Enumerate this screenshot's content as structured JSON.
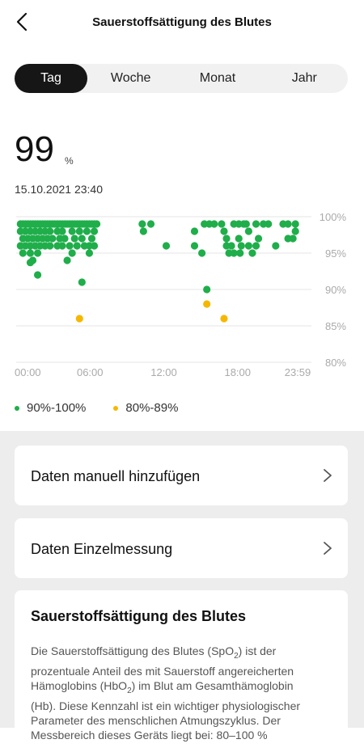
{
  "header": {
    "title": "Sauerstoffsättigung des Blutes"
  },
  "tabs": [
    {
      "label": "Tag",
      "active": true
    },
    {
      "label": "Woche",
      "active": false
    },
    {
      "label": "Monat",
      "active": false
    },
    {
      "label": "Jahr",
      "active": false
    }
  ],
  "summary": {
    "value": "99",
    "unit": "%",
    "timestamp": "15.10.2021 23:40"
  },
  "chart_data": {
    "type": "scatter",
    "x_ticks": [
      "00:00",
      "06:00",
      "12:00",
      "18:00",
      "23:59"
    ],
    "y_ticks": [
      "100%",
      "95%",
      "90%",
      "85%",
      "80%"
    ],
    "ylim": [
      80,
      100
    ],
    "series": [
      {
        "name": "90%-100%",
        "color": "#1fae4a",
        "points": [
          [
            0.15,
            99
          ],
          [
            0.35,
            99
          ],
          [
            0.55,
            99
          ],
          [
            0.75,
            99
          ],
          [
            0.95,
            99
          ],
          [
            1.15,
            99
          ],
          [
            1.35,
            99
          ],
          [
            1.55,
            99
          ],
          [
            1.75,
            99
          ],
          [
            1.95,
            99
          ],
          [
            2.15,
            99
          ],
          [
            2.35,
            99
          ],
          [
            2.55,
            99
          ],
          [
            2.75,
            99
          ],
          [
            2.95,
            99
          ],
          [
            3.15,
            99
          ],
          [
            3.35,
            99
          ],
          [
            3.55,
            99
          ],
          [
            3.75,
            99
          ],
          [
            3.95,
            99
          ],
          [
            4.15,
            99
          ],
          [
            4.35,
            99
          ],
          [
            4.55,
            99
          ],
          [
            4.75,
            99
          ],
          [
            4.95,
            99
          ],
          [
            5.15,
            99
          ],
          [
            5.35,
            99
          ],
          [
            5.55,
            99
          ],
          [
            5.75,
            99
          ],
          [
            5.95,
            99
          ],
          [
            6.15,
            99
          ],
          [
            6.35,
            99
          ],
          [
            0.15,
            98
          ],
          [
            0.55,
            98
          ],
          [
            0.95,
            98
          ],
          [
            1.35,
            98
          ],
          [
            1.75,
            98
          ],
          [
            2.15,
            98
          ],
          [
            2.55,
            98
          ],
          [
            3.15,
            98
          ],
          [
            3.55,
            98
          ],
          [
            4.35,
            98
          ],
          [
            4.95,
            98
          ],
          [
            5.55,
            98
          ],
          [
            6.15,
            98
          ],
          [
            0.35,
            97
          ],
          [
            0.75,
            97
          ],
          [
            1.15,
            97
          ],
          [
            1.55,
            97
          ],
          [
            1.95,
            97
          ],
          [
            2.35,
            97
          ],
          [
            2.75,
            97
          ],
          [
            3.35,
            97
          ],
          [
            3.75,
            97
          ],
          [
            4.55,
            97
          ],
          [
            5.15,
            97
          ],
          [
            5.95,
            97
          ],
          [
            0.15,
            96
          ],
          [
            0.55,
            96
          ],
          [
            0.95,
            96
          ],
          [
            1.35,
            96
          ],
          [
            1.75,
            96
          ],
          [
            2.15,
            96
          ],
          [
            2.55,
            96
          ],
          [
            3.15,
            96
          ],
          [
            3.55,
            96
          ],
          [
            4.15,
            96
          ],
          [
            4.75,
            96
          ],
          [
            5.35,
            96
          ],
          [
            5.75,
            96
          ],
          [
            6.15,
            96
          ],
          [
            0.35,
            95
          ],
          [
            0.95,
            95
          ],
          [
            1.55,
            95
          ],
          [
            4.35,
            95
          ],
          [
            5.75,
            95
          ],
          [
            1.15,
            94
          ],
          [
            3.95,
            94
          ],
          [
            0.95,
            93.7
          ],
          [
            1.55,
            92
          ],
          [
            5.15,
            91
          ],
          [
            10.05,
            99
          ],
          [
            10.15,
            98
          ],
          [
            10.75,
            99
          ],
          [
            12.0,
            96
          ],
          [
            14.3,
            98
          ],
          [
            14.3,
            96
          ],
          [
            14.9,
            95
          ],
          [
            15.1,
            99
          ],
          [
            15.5,
            99
          ],
          [
            15.9,
            99
          ],
          [
            16.5,
            99
          ],
          [
            16.7,
            98
          ],
          [
            16.9,
            97
          ],
          [
            16.9,
            96
          ],
          [
            17.5,
            99
          ],
          [
            17.3,
            96
          ],
          [
            17.9,
            99
          ],
          [
            17.9,
            97
          ],
          [
            17.1,
            95
          ],
          [
            17.5,
            95
          ],
          [
            18.0,
            95
          ],
          [
            18.1,
            96
          ],
          [
            18.3,
            99
          ],
          [
            18.5,
            99
          ],
          [
            18.7,
            98
          ],
          [
            18.7,
            96
          ],
          [
            19.0,
            95
          ],
          [
            19.3,
            96
          ],
          [
            19.5,
            97
          ],
          [
            19.3,
            99
          ],
          [
            19.9,
            99
          ],
          [
            20.3,
            99
          ],
          [
            20.9,
            96
          ],
          [
            21.5,
            99
          ],
          [
            21.9,
            99
          ],
          [
            21.9,
            97
          ],
          [
            22.3,
            97
          ],
          [
            22.5,
            99
          ],
          [
            22.5,
            98
          ],
          [
            15.3,
            90
          ]
        ]
      },
      {
        "name": "80%-89%",
        "color": "#f5b800",
        "points": [
          [
            4.95,
            86
          ],
          [
            15.3,
            88
          ],
          [
            16.7,
            86
          ]
        ]
      }
    ]
  },
  "legend": [
    {
      "label": "90%-100%",
      "color": "#1fae4a"
    },
    {
      "label": "80%-89%",
      "color": "#f5b800"
    }
  ],
  "actions": {
    "add_manual": "Daten manuell hinzufügen",
    "single_measurement": "Daten Einzelmessung"
  },
  "info": {
    "title": "Sauerstoffsättigung des Blutes",
    "line1_a": "Die Sauerstoffsättigung des Blutes (SpO",
    "line1_sub": "2",
    "line1_b": ") ist der",
    "line2": "prozentuale Anteil des mit Sauerstoff angereicherten",
    "line3_a": "Hämoglobins (HbO",
    "line3_sub": "2",
    "line3_b": ") im Blut am Gesamthämoglobin",
    "line4": "(Hb). Diese Kennzahl ist ein wichtiger physiologischer",
    "line5": "Parameter des menschlichen Atmungszyklus. Der",
    "line6": "Messbereich dieses Geräts liegt bei: 80–100 %"
  }
}
